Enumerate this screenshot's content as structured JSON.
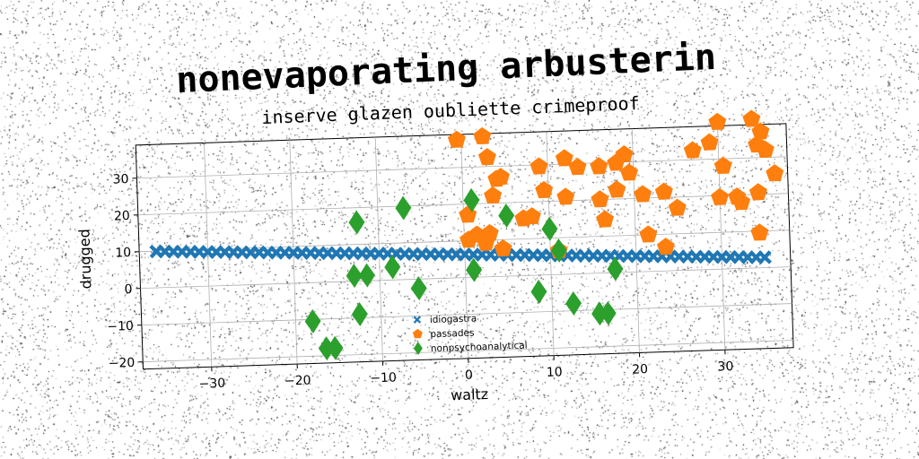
{
  "chart_data": {
    "type": "scatter",
    "title": "nonevaporating arbusterin",
    "subtitle": "inserve glazen oubliette crimeproof",
    "xlabel": "waltz",
    "ylabel": "drugged",
    "xlim": [
      -38,
      38
    ],
    "ylim": [
      -22,
      39
    ],
    "xticks": [
      -30,
      -20,
      -10,
      0,
      10,
      20,
      30
    ],
    "yticks": [
      -20,
      -10,
      0,
      10,
      20,
      30
    ],
    "xtick_labels": [
      "−30",
      "−20",
      "−10",
      "0",
      "10",
      "20",
      "30"
    ],
    "ytick_labels": [
      "−20",
      "−10",
      "0",
      "10",
      "20",
      "30"
    ],
    "grid": true,
    "legend_position": "lower-center",
    "series": [
      {
        "name": "idiogastra",
        "marker": "x",
        "color": "#1f77b4",
        "points": [
          [
            -36,
            9.9
          ],
          [
            -35,
            9.8
          ],
          [
            -34,
            9.7
          ],
          [
            -33,
            9.6
          ],
          [
            -32,
            9.5
          ],
          [
            -31,
            9.4
          ],
          [
            -30,
            9.3
          ],
          [
            -29,
            9.2
          ],
          [
            -28,
            9.1
          ],
          [
            -27,
            9.0
          ],
          [
            -26,
            8.9
          ],
          [
            -25,
            8.8
          ],
          [
            -24,
            8.7
          ],
          [
            -23,
            8.6
          ],
          [
            -22,
            8.5
          ],
          [
            -21,
            8.4
          ],
          [
            -20,
            8.3
          ],
          [
            -19,
            8.2
          ],
          [
            -18,
            8.1
          ],
          [
            -17,
            8.0
          ],
          [
            -16,
            7.9
          ],
          [
            -15,
            7.8
          ],
          [
            -14,
            7.7
          ],
          [
            -13,
            7.6
          ],
          [
            -12,
            7.5
          ],
          [
            -11,
            7.4
          ],
          [
            -10,
            7.3
          ],
          [
            -9,
            7.2
          ],
          [
            -8,
            7.1
          ],
          [
            -7,
            7.0
          ],
          [
            -6,
            6.9
          ],
          [
            -5,
            6.8
          ],
          [
            -4,
            6.7
          ],
          [
            -3,
            6.6
          ],
          [
            -2,
            6.5
          ],
          [
            -1,
            6.4
          ],
          [
            0,
            6.3
          ],
          [
            1,
            6.2
          ],
          [
            2,
            6.1
          ],
          [
            3,
            6.0
          ],
          [
            4,
            5.9
          ],
          [
            5,
            5.8
          ],
          [
            6,
            5.7
          ],
          [
            7,
            5.6
          ],
          [
            8,
            5.5
          ],
          [
            9,
            5.4
          ],
          [
            10,
            5.3
          ],
          [
            11,
            5.2
          ],
          [
            12,
            5.1
          ],
          [
            13,
            5.0
          ],
          [
            14,
            4.9
          ],
          [
            15,
            4.8
          ],
          [
            16,
            4.7
          ],
          [
            17,
            4.6
          ],
          [
            18,
            4.5
          ],
          [
            19,
            4.4
          ],
          [
            20,
            4.3
          ],
          [
            21,
            4.2
          ],
          [
            22,
            4.1
          ],
          [
            23,
            4.0
          ],
          [
            24,
            3.9
          ],
          [
            25,
            3.8
          ],
          [
            26,
            3.7
          ],
          [
            27,
            3.6
          ],
          [
            28,
            3.5
          ],
          [
            29,
            3.4
          ],
          [
            30,
            3.3
          ],
          [
            31,
            3.2
          ],
          [
            32,
            3.1
          ],
          [
            33,
            3.0
          ],
          [
            34,
            2.9
          ],
          [
            35,
            2.8
          ]
        ]
      },
      {
        "name": "passades",
        "marker": "pentagon",
        "color": "#ff7f0e",
        "points": [
          [
            -0.5,
            37.5
          ],
          [
            2.5,
            38.2
          ],
          [
            3,
            32.5
          ],
          [
            4,
            26.5
          ],
          [
            4.5,
            27
          ],
          [
            3.5,
            22
          ],
          [
            0.5,
            17
          ],
          [
            7,
            15.5
          ],
          [
            8,
            16
          ],
          [
            1.5,
            11.5
          ],
          [
            3,
            11.8
          ],
          [
            0.5,
            10.2
          ],
          [
            2.5,
            9.2
          ],
          [
            4.5,
            7.5
          ],
          [
            9,
            29.5
          ],
          [
            12,
            31.5
          ],
          [
            13.5,
            29
          ],
          [
            16,
            29
          ],
          [
            18,
            29.8
          ],
          [
            19,
            32
          ],
          [
            19.5,
            27
          ],
          [
            18,
            22.5
          ],
          [
            16,
            20
          ],
          [
            9.5,
            23
          ],
          [
            12,
            21
          ],
          [
            16.5,
            14.5
          ],
          [
            21,
            21
          ],
          [
            23.5,
            21.5
          ],
          [
            25,
            17
          ],
          [
            21.5,
            10
          ],
          [
            23.5,
            6.5
          ],
          [
            30,
            40
          ],
          [
            34,
            40.5
          ],
          [
            35,
            37
          ],
          [
            29,
            34.5
          ],
          [
            27,
            32.5
          ],
          [
            34.5,
            33.5
          ],
          [
            35.5,
            32
          ],
          [
            30.5,
            28
          ],
          [
            36.5,
            25.5
          ],
          [
            32,
            19.5
          ],
          [
            30,
            19.5
          ],
          [
            32.5,
            18
          ],
          [
            34.5,
            20.5
          ],
          [
            11,
            6.5
          ],
          [
            34.5,
            9.5
          ]
        ]
      },
      {
        "name": "nonpsychoanalytical",
        "marker": "diamond",
        "color": "#2ca02c",
        "points": [
          [
            1,
            21
          ],
          [
            1,
            2
          ],
          [
            -12.5,
            16
          ],
          [
            -7,
            19.5
          ],
          [
            5,
            16.5
          ],
          [
            -12.5,
            -9
          ],
          [
            -11.5,
            1.5
          ],
          [
            -13,
            1.5
          ],
          [
            -8.5,
            3.5
          ],
          [
            -5.5,
            -2.5
          ],
          [
            -18,
            -10.5
          ],
          [
            -15.5,
            -18
          ],
          [
            -16.5,
            -18
          ],
          [
            10,
            12.5
          ],
          [
            11,
            6.5
          ],
          [
            8.5,
            -4.5
          ],
          [
            12.5,
            -8
          ],
          [
            15.5,
            -11
          ],
          [
            16.5,
            -11
          ],
          [
            17.5,
            1
          ]
        ]
      }
    ]
  }
}
